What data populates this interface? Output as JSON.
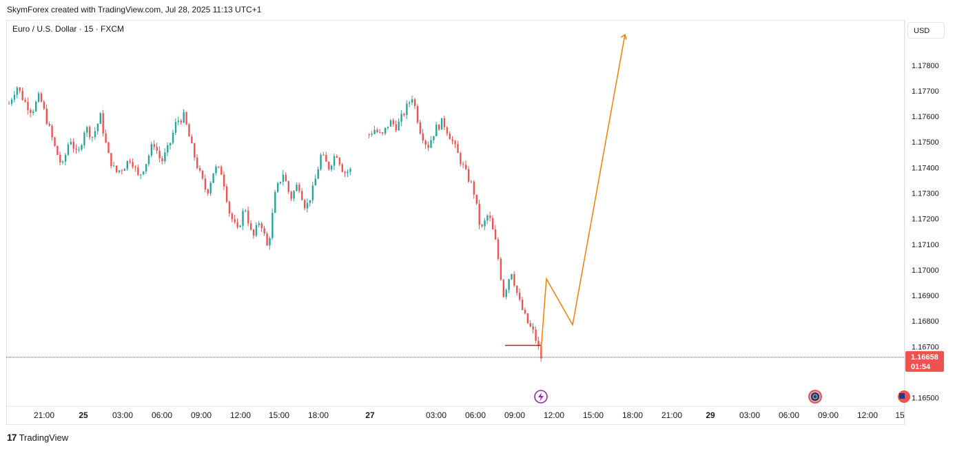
{
  "header": {
    "text": "SkymForex created with TradingView.com, Jul 28, 2025 11:13 UTC+1"
  },
  "symbol": {
    "text": "Euro / U.S. Dollar · 15 · FXCM"
  },
  "currency_button": "USD",
  "footer": {
    "logo": "17",
    "brand": "TradingView"
  },
  "colors": {
    "up": "#26a69a",
    "down": "#ef5350",
    "projection": "#f57c00",
    "price_line": "#b71c1c",
    "support": "#b71c1c"
  },
  "chart_data": {
    "type": "candlestick",
    "y_ticks": [
      "1.17800",
      "1.17700",
      "1.17600",
      "1.17500",
      "1.17400",
      "1.17300",
      "1.17200",
      "1.17100",
      "1.17000",
      "1.16900",
      "1.16800",
      "1.16700",
      "1.16500"
    ],
    "y_values": [
      1.178,
      1.177,
      1.176,
      1.175,
      1.174,
      1.173,
      1.172,
      1.171,
      1.17,
      1.169,
      1.168,
      1.167,
      1.165
    ],
    "ylim": [
      1.1648,
      1.1791
    ],
    "x_ticks": [
      {
        "label": "21:00",
        "bold": false
      },
      {
        "label": "25",
        "bold": true
      },
      {
        "label": "03:00",
        "bold": false
      },
      {
        "label": "06:00",
        "bold": false
      },
      {
        "label": "09:00",
        "bold": false
      },
      {
        "label": "12:00",
        "bold": false
      },
      {
        "label": "15:00",
        "bold": false
      },
      {
        "label": "18:00",
        "bold": false
      },
      {
        "label": "27",
        "bold": true
      },
      {
        "label": "03:00",
        "bold": false
      },
      {
        "label": "06:00",
        "bold": false
      },
      {
        "label": "09:00",
        "bold": false
      },
      {
        "label": "12:00",
        "bold": false
      },
      {
        "label": "15:00",
        "bold": false
      },
      {
        "label": "18:00",
        "bold": false
      },
      {
        "label": "21:00",
        "bold": false
      },
      {
        "label": "29",
        "bold": true
      },
      {
        "label": "03:00",
        "bold": false
      },
      {
        "label": "06:00",
        "bold": false
      },
      {
        "label": "09:00",
        "bold": false
      },
      {
        "label": "12:00",
        "bold": false
      },
      {
        "label": "15",
        "bold": false
      }
    ],
    "last_price": {
      "value": 1.16658,
      "label": "1.16658",
      "countdown": "01:54"
    },
    "support_level": 1.16705,
    "projection_path": [
      1.1668,
      1.16965,
      1.16785,
      1.1792
    ],
    "keypoints": [
      1.1765,
      1.1772,
      1.1766,
      1.1762,
      1.1768,
      1.1758,
      1.1748,
      1.174,
      1.1752,
      1.1744,
      1.1756,
      1.1752,
      1.176,
      1.1745,
      1.1738,
      1.174,
      1.1744,
      1.1736,
      1.1742,
      1.175,
      1.1742,
      1.1748,
      1.1758,
      1.176,
      1.1748,
      1.1738,
      1.173,
      1.174,
      1.1738,
      1.1722,
      1.1715,
      1.1725,
      1.1712,
      1.172,
      1.1708,
      1.173,
      1.1738,
      1.1728,
      1.1734,
      1.1724,
      1.1732,
      1.1745,
      1.174,
      1.1746,
      1.1738,
      1.1739,
      null,
      1.1752,
      1.1755,
      1.1752,
      1.1758,
      1.1756,
      1.1762,
      1.1768,
      1.1755,
      1.1748,
      1.1755,
      1.1758,
      1.1752,
      1.1745,
      1.1738,
      1.1732,
      1.1715,
      1.1722,
      1.171,
      1.169,
      1.17,
      1.1688,
      1.168,
      1.1675,
      1.1665
    ]
  }
}
